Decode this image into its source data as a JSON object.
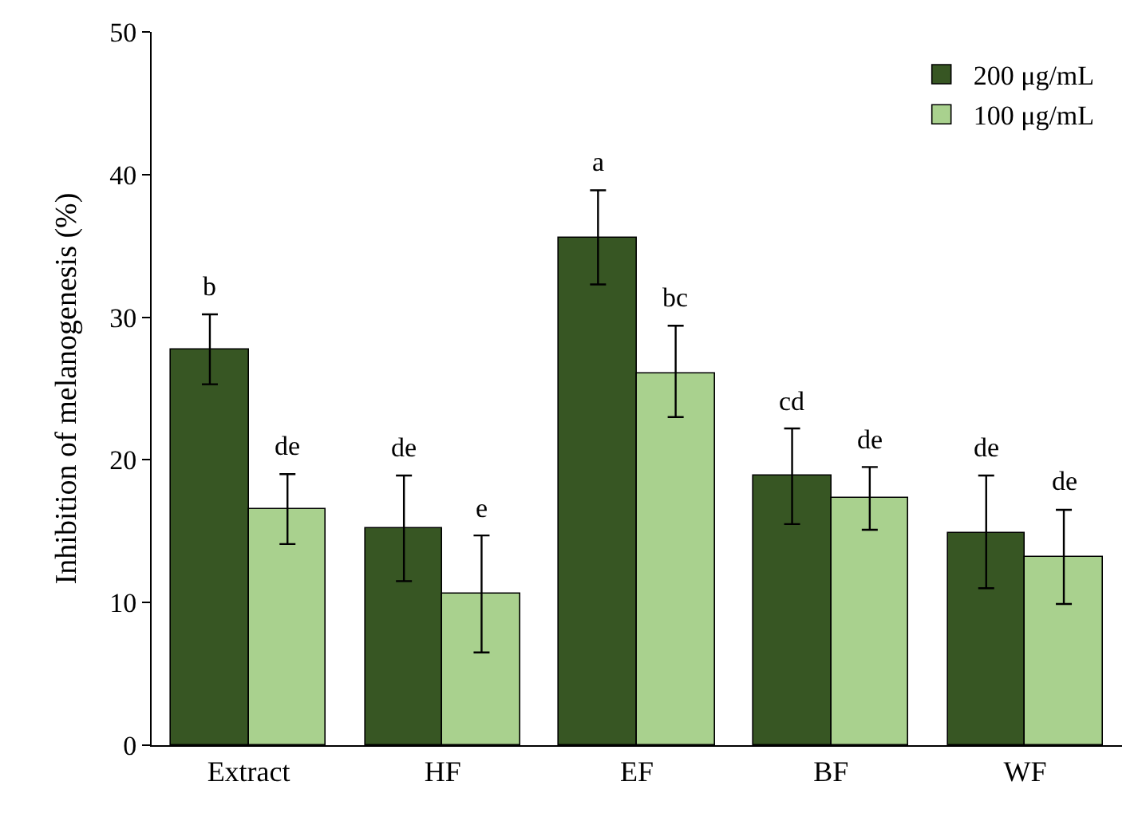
{
  "chart_data": {
    "type": "bar",
    "ylabel": "Inhibition of melanogenesis (%)",
    "categories": [
      "Extract",
      "HF",
      "EF",
      "BF",
      "WF"
    ],
    "series": [
      {
        "name": "200 μg/mL",
        "color": "#375623",
        "values": [
          27.7,
          15.2,
          35.6,
          18.9,
          14.9
        ],
        "errors": [
          [
            25.3,
            30.2
          ],
          [
            11.5,
            18.9
          ],
          [
            32.3,
            38.9
          ],
          [
            15.5,
            22.2
          ],
          [
            11.0,
            18.9
          ]
        ]
      },
      {
        "name": "100 μg/mL",
        "color": "#a9d18e",
        "values": [
          16.6,
          10.6,
          26.1,
          17.3,
          13.2
        ],
        "errors": [
          [
            14.1,
            19.0
          ],
          [
            6.5,
            14.7
          ],
          [
            23.0,
            29.4
          ],
          [
            15.1,
            19.5
          ],
          [
            9.9,
            16.5
          ]
        ]
      }
    ],
    "ylim": [
      0,
      50
    ],
    "yticks": [
      0,
      10,
      20,
      30,
      40,
      50
    ],
    "legend": "top right",
    "annotations": [
      "b",
      "de",
      "de",
      "e",
      "a",
      "bc",
      "cd",
      "de",
      "de",
      "de"
    ]
  }
}
